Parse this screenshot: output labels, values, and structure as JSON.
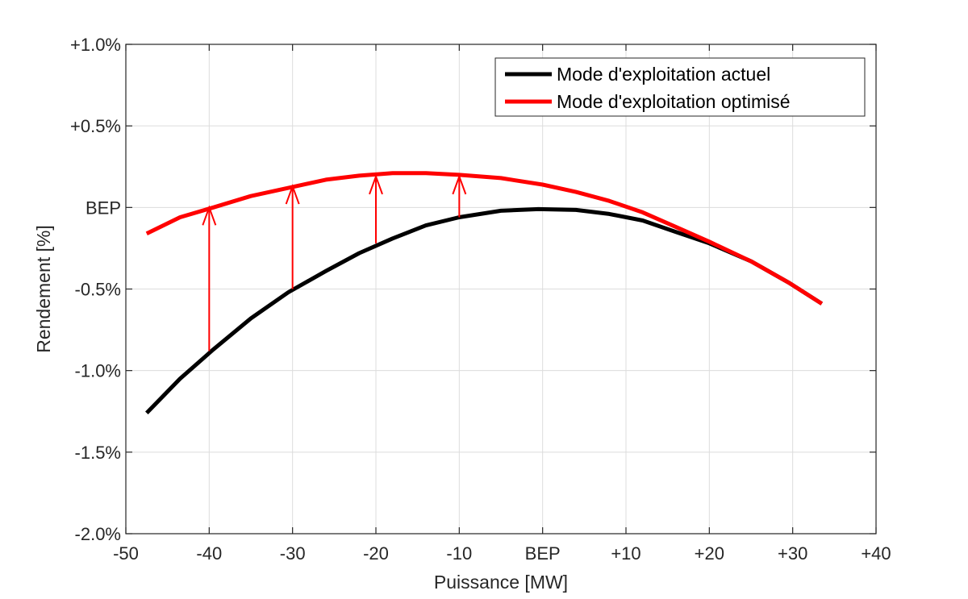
{
  "chart_data": {
    "type": "line",
    "title": "",
    "xlabel": "Puissance [MW]",
    "ylabel": "Rendement [%]",
    "xlim": [
      -50,
      40
    ],
    "ylim": [
      -2.0,
      1.0
    ],
    "grid": true,
    "legend_position": "top-right",
    "x_ticks": [
      {
        "value": -50,
        "label": "-50"
      },
      {
        "value": -40,
        "label": "-40"
      },
      {
        "value": -30,
        "label": "-30"
      },
      {
        "value": -20,
        "label": "-20"
      },
      {
        "value": -10,
        "label": "-10"
      },
      {
        "value": 0,
        "label": "BEP"
      },
      {
        "value": 10,
        "label": "+10"
      },
      {
        "value": 20,
        "label": "+20"
      },
      {
        "value": 30,
        "label": "+30"
      },
      {
        "value": 40,
        "label": "+40"
      }
    ],
    "y_ticks": [
      {
        "value": 1.0,
        "label": "+1.0%"
      },
      {
        "value": 0.5,
        "label": "+0.5%"
      },
      {
        "value": 0.0,
        "label": "BEP"
      },
      {
        "value": -0.5,
        "label": "-0.5%"
      },
      {
        "value": -1.0,
        "label": "-1.0%"
      },
      {
        "value": -1.5,
        "label": "-1.5%"
      },
      {
        "value": -2.0,
        "label": "-2.0%"
      }
    ],
    "series": [
      {
        "name": "Mode d'exploitation actuel",
        "color": "#000000",
        "x": [
          -47.5,
          -43.5,
          -39.5,
          -35,
          -30.5,
          -26,
          -22,
          -18,
          -14,
          -10,
          -5,
          -0.5,
          4,
          8,
          12,
          16,
          20,
          25,
          29.5,
          33.5
        ],
        "y": [
          -1.26,
          -1.05,
          -0.87,
          -0.68,
          -0.52,
          -0.39,
          -0.28,
          -0.19,
          -0.11,
          -0.06,
          -0.02,
          -0.01,
          -0.015,
          -0.04,
          -0.08,
          -0.15,
          -0.22,
          -0.33,
          -0.46,
          -0.59
        ]
      },
      {
        "name": "Mode d'exploitation optimisé",
        "color": "#ff0000",
        "x": [
          -47.5,
          -43.5,
          -39.5,
          -35,
          -30.5,
          -26,
          -22,
          -18,
          -14,
          -10,
          -5,
          0,
          4,
          8,
          12,
          16,
          20,
          25,
          29.5,
          33.5
        ],
        "y": [
          -0.16,
          -0.06,
          0.0,
          0.07,
          0.12,
          0.17,
          0.195,
          0.21,
          0.21,
          0.2,
          0.18,
          0.14,
          0.095,
          0.04,
          -0.03,
          -0.12,
          -0.21,
          -0.33,
          -0.46,
          -0.59
        ]
      }
    ],
    "annotations": [
      {
        "type": "arrow",
        "color": "#ff0000",
        "x": -40,
        "y_from": -0.88,
        "y_to": 0.0
      },
      {
        "type": "arrow",
        "color": "#ff0000",
        "x": -30,
        "y_from": -0.5,
        "y_to": 0.13
      },
      {
        "type": "arrow",
        "color": "#ff0000",
        "x": -20,
        "y_from": -0.22,
        "y_to": 0.19
      },
      {
        "type": "arrow",
        "color": "#ff0000",
        "x": -10,
        "y_from": -0.06,
        "y_to": 0.19
      }
    ]
  }
}
